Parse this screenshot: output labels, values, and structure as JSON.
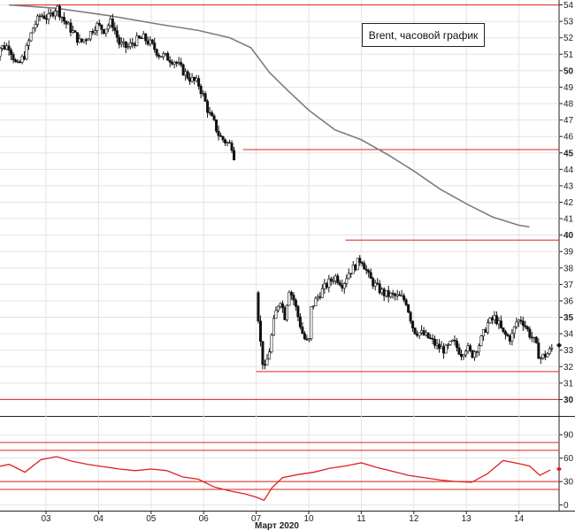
{
  "chart_data": [
    {
      "type": "candlestick",
      "legend_text": "Brent, часовой график",
      "legend_position": "top-right",
      "month_label": "Март 2020",
      "x_ticks": [
        "03",
        "04",
        "05",
        "06",
        "07",
        "10",
        "11",
        "12",
        "13",
        "14"
      ],
      "y_ticks": [
        30,
        31,
        32,
        33,
        34,
        35,
        36,
        37,
        38,
        39,
        40,
        41,
        42,
        43,
        44,
        45,
        46,
        47,
        48,
        49,
        50,
        51,
        52,
        53,
        54
      ],
      "y_major_ticks": [
        30,
        35,
        40,
        45,
        50
      ],
      "ylim": [
        29,
        54.3
      ],
      "grid": true,
      "current_price": 33.3,
      "level_lines": [
        {
          "value": 54.0,
          "from_day": 0.3,
          "to_day": 10.0
        },
        {
          "value": 45.2,
          "from_day": 4.75,
          "to_day": 10.0
        },
        {
          "value": 39.7,
          "from_day": 6.7,
          "to_day": 10.0
        },
        {
          "value": 31.7,
          "from_day": 5.0,
          "to_day": 10.0
        },
        {
          "value": 30.0,
          "from_day": 0.0,
          "to_day": 10.0
        }
      ],
      "price_path": [
        [
          0.0,
          49.6
        ],
        [
          0.1,
          51.4
        ],
        [
          0.3,
          51.5
        ],
        [
          0.45,
          50.2
        ],
        [
          0.6,
          51.0
        ],
        [
          0.75,
          52.6
        ],
        [
          0.9,
          53.4
        ],
        [
          1.05,
          53.2
        ],
        [
          1.2,
          53.9
        ],
        [
          1.35,
          53.0
        ],
        [
          1.5,
          52.4
        ],
        [
          1.65,
          51.7
        ],
        [
          1.8,
          52.1
        ],
        [
          1.95,
          52.8
        ],
        [
          2.1,
          52.5
        ],
        [
          2.25,
          53.0
        ],
        [
          2.4,
          51.6
        ],
        [
          2.55,
          51.4
        ],
        [
          2.7,
          51.8
        ],
        [
          2.85,
          52.0
        ],
        [
          3.0,
          51.6
        ],
        [
          3.15,
          51.0
        ],
        [
          3.3,
          50.8
        ],
        [
          3.45,
          50.6
        ],
        [
          3.6,
          50.0
        ],
        [
          3.75,
          49.5
        ],
        [
          3.9,
          49.2
        ],
        [
          4.0,
          48.4
        ],
        [
          4.1,
          47.4
        ],
        [
          4.2,
          46.8
        ],
        [
          4.3,
          46.0
        ],
        [
          4.45,
          45.6
        ],
        [
          4.55,
          45.4
        ],
        [
          5.0,
          36.5
        ],
        [
          5.08,
          33.5
        ],
        [
          5.15,
          31.6
        ],
        [
          5.25,
          33.0
        ],
        [
          5.35,
          35.0
        ],
        [
          5.45,
          36.2
        ],
        [
          5.55,
          35.0
        ],
        [
          5.62,
          36.8
        ],
        [
          5.72,
          36.0
        ],
        [
          5.8,
          35.0
        ],
        [
          5.9,
          33.8
        ],
        [
          6.0,
          33.3
        ],
        [
          6.05,
          35.6
        ],
        [
          6.2,
          36.4
        ],
        [
          6.35,
          37.0
        ],
        [
          6.5,
          37.5
        ],
        [
          6.65,
          37.0
        ],
        [
          6.75,
          37.7
        ],
        [
          6.85,
          38.0
        ],
        [
          7.0,
          38.6
        ],
        [
          7.15,
          37.4
        ],
        [
          7.3,
          36.8
        ],
        [
          7.45,
          36.4
        ],
        [
          7.6,
          36.3
        ],
        [
          7.75,
          36.2
        ],
        [
          7.85,
          36.0
        ],
        [
          8.0,
          34.2
        ],
        [
          8.15,
          34.0
        ],
        [
          8.3,
          33.7
        ],
        [
          8.45,
          33.2
        ],
        [
          8.6,
          33.0
        ],
        [
          8.75,
          33.5
        ],
        [
          8.9,
          32.8
        ],
        [
          9.0,
          33.2
        ],
        [
          9.1,
          32.7
        ],
        [
          9.25,
          33.4
        ],
        [
          9.4,
          34.6
        ],
        [
          9.55,
          35.0
        ],
        [
          9.7,
          34.0
        ],
        [
          9.85,
          33.7
        ],
        [
          9.95,
          34.7
        ],
        [
          10.05,
          34.9
        ],
        [
          10.2,
          34.0
        ],
        [
          10.3,
          33.5
        ],
        [
          10.4,
          32.5
        ],
        [
          10.55,
          32.8
        ],
        [
          10.65,
          33.2
        ]
      ],
      "moving_average": [
        [
          0.3,
          54.0
        ],
        [
          1.2,
          53.8
        ],
        [
          2.2,
          53.35
        ],
        [
          3.2,
          52.8
        ],
        [
          3.9,
          52.45
        ],
        [
          4.5,
          52.0
        ],
        [
          4.9,
          51.4
        ],
        [
          5.25,
          49.9
        ],
        [
          5.6,
          48.8
        ],
        [
          6.0,
          47.6
        ],
        [
          6.5,
          46.4
        ],
        [
          7.0,
          45.8
        ],
        [
          7.5,
          44.9
        ],
        [
          8.0,
          43.9
        ],
        [
          8.5,
          42.8
        ],
        [
          9.0,
          41.9
        ],
        [
          9.5,
          41.1
        ],
        [
          10.0,
          40.6
        ],
        [
          10.2,
          40.5
        ]
      ],
      "oscillator": {
        "y_ticks": [
          0,
          30,
          60,
          90
        ],
        "ylim": [
          -5,
          105
        ],
        "level_lines": [
          80,
          70,
          30,
          20
        ],
        "current_value": 46,
        "values": [
          [
            0.0,
            48
          ],
          [
            0.3,
            52
          ],
          [
            0.6,
            42
          ],
          [
            0.9,
            58
          ],
          [
            1.2,
            62
          ],
          [
            1.5,
            56
          ],
          [
            1.8,
            52
          ],
          [
            2.1,
            49
          ],
          [
            2.4,
            46
          ],
          [
            2.7,
            44
          ],
          [
            3.0,
            46
          ],
          [
            3.3,
            44
          ],
          [
            3.6,
            36
          ],
          [
            3.9,
            33
          ],
          [
            4.2,
            23
          ],
          [
            4.5,
            18
          ],
          [
            4.8,
            14
          ],
          [
            5.0,
            10
          ],
          [
            5.15,
            6
          ],
          [
            5.3,
            22
          ],
          [
            5.5,
            35
          ],
          [
            5.8,
            39
          ],
          [
            6.1,
            42
          ],
          [
            6.4,
            47
          ],
          [
            6.7,
            50
          ],
          [
            7.0,
            54
          ],
          [
            7.3,
            48
          ],
          [
            7.6,
            43
          ],
          [
            7.9,
            38
          ],
          [
            8.2,
            35
          ],
          [
            8.5,
            32
          ],
          [
            8.8,
            30
          ],
          [
            9.1,
            29
          ],
          [
            9.4,
            40
          ],
          [
            9.7,
            57
          ],
          [
            10.0,
            53
          ],
          [
            10.2,
            50
          ],
          [
            10.4,
            38
          ],
          [
            10.6,
            45
          ]
        ]
      }
    }
  ]
}
